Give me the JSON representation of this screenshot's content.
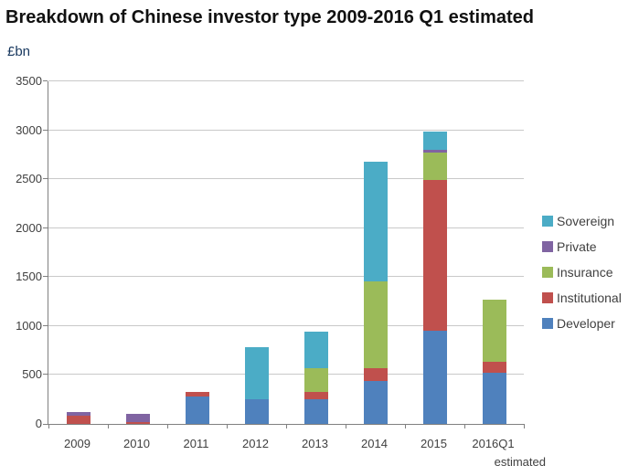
{
  "header": {
    "title": "Breakdown of Chinese investor type 2009-2016 Q1 estimated",
    "unit_label": "£bn"
  },
  "chart_data": {
    "type": "bar",
    "subtype": "stacked-vertical",
    "title": "Breakdown of Chinese investor type 2009-2016 Q1 estimated",
    "ylabel": "£bn",
    "xlabel": "",
    "ylim": [
      0,
      3500
    ],
    "ytick_step": 500,
    "ytick_labels": [
      "0",
      "500",
      "1000",
      "1500",
      "2000",
      "2500",
      "3000",
      "3500"
    ],
    "grid": true,
    "legend_position": "right",
    "categories": [
      "2009",
      "2010",
      "2011",
      "2012",
      "2013",
      "2014",
      "2015",
      "2016Q1"
    ],
    "x_note": {
      "category": "2016Q1",
      "text": "estimated"
    },
    "series": [
      {
        "name": "Developer",
        "color": "#4F81BD",
        "values": [
          0,
          0,
          280,
          255,
          250,
          435,
          955,
          520
        ]
      },
      {
        "name": "Institutional",
        "color": "#C0504D",
        "values": [
          85,
          15,
          45,
          0,
          75,
          130,
          1540,
          115
        ]
      },
      {
        "name": "Insurance",
        "color": "#9BBB59",
        "values": [
          0,
          0,
          0,
          0,
          245,
          890,
          280,
          635
        ]
      },
      {
        "name": "Private",
        "color": "#8064A2",
        "values": [
          40,
          90,
          0,
          0,
          0,
          0,
          25,
          0
        ]
      },
      {
        "name": "Sovereign",
        "color": "#4BACC6",
        "values": [
          0,
          0,
          0,
          530,
          375,
          1220,
          190,
          0
        ]
      }
    ],
    "totals": [
      125,
      105,
      325,
      785,
      945,
      2675,
      2990,
      1270
    ],
    "legend_order": [
      "Sovereign",
      "Private",
      "Insurance",
      "Institutional",
      "Developer"
    ]
  }
}
